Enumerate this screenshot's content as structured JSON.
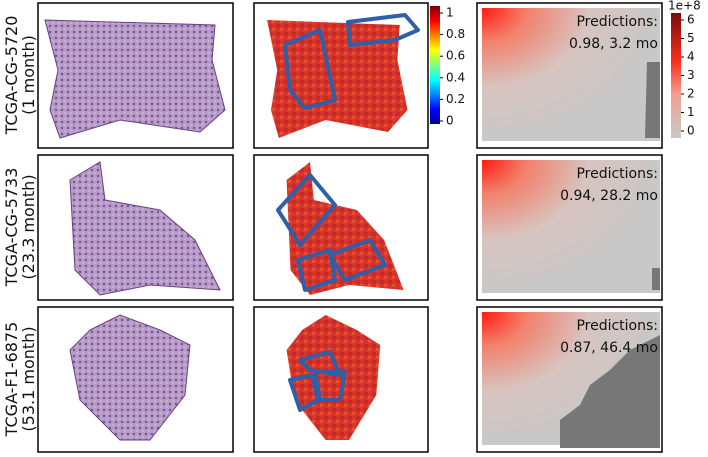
{
  "rows": [
    {
      "label": "TCGA-CG-5720",
      "survival": "(1 month)",
      "prediction_title": "Predictions:",
      "prediction": "0.98, 3.2 mo"
    },
    {
      "label": "TCGA-CG-5733",
      "survival": "(23.3 month)",
      "prediction_title": "Predictions:",
      "prediction": "0.94, 28.2 mo"
    },
    {
      "label": "TCGA-F1-6875",
      "survival": "(53.1 month)",
      "prediction_title": "Predictions:",
      "prediction": "0.87, 46.4 mo"
    }
  ],
  "colorbar_attention": {
    "ticks": [
      "1",
      "0.8",
      "0.6",
      "0.4",
      "0.2",
      "0"
    ]
  },
  "colorbar_risk": {
    "exponent": "1e+8",
    "ticks": [
      "6",
      "5",
      "4",
      "3",
      "2",
      "1",
      "0"
    ]
  }
}
